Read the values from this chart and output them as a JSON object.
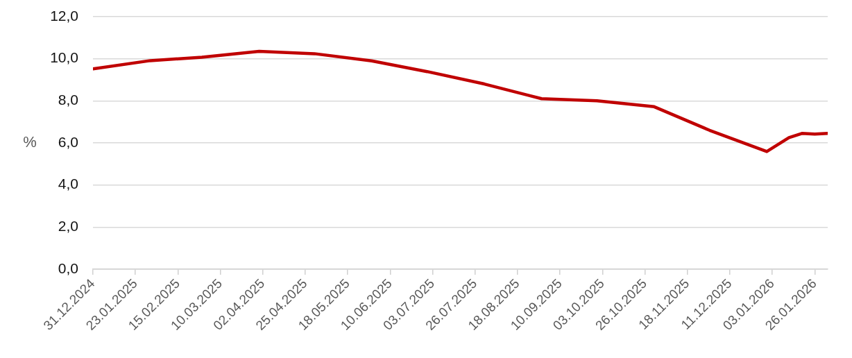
{
  "chart_data": {
    "type": "line",
    "ylabel": "%",
    "x": [
      "2024-12-31",
      "2025-01-31",
      "2025-02-28",
      "2025-03-31",
      "2025-04-30",
      "2025-05-31",
      "2025-06-30",
      "2025-07-31",
      "2025-08-31",
      "2025-09-30",
      "2025-10-31",
      "2025-11-30",
      "2025-12-31",
      "2026-01-12",
      "2026-01-19",
      "2026-01-26",
      "2026-02-02"
    ],
    "values": [
      9.52,
      9.91,
      10.07,
      10.35,
      10.24,
      9.9,
      9.39,
      8.8,
      8.1,
      8.0,
      7.72,
      6.6,
      5.59,
      6.25,
      6.45,
      6.42,
      6.45
    ],
    "color": "#c00000",
    "xlim": [
      "2024-12-31",
      "2026-02-02"
    ],
    "xticks": [
      {
        "value": "2024-12-31",
        "label": "31.12.2024"
      },
      {
        "value": "2025-01-23",
        "label": "23.01.2025"
      },
      {
        "value": "2025-02-15",
        "label": "15.02.2025"
      },
      {
        "value": "2025-03-10",
        "label": "10.03.2025"
      },
      {
        "value": "2025-04-02",
        "label": "02.04.2025"
      },
      {
        "value": "2025-04-25",
        "label": "25.04.2025"
      },
      {
        "value": "2025-05-18",
        "label": "18.05.2025"
      },
      {
        "value": "2025-06-10",
        "label": "10.06.2025"
      },
      {
        "value": "2025-07-03",
        "label": "03.07.2025"
      },
      {
        "value": "2025-07-26",
        "label": "26.07.2025"
      },
      {
        "value": "2025-08-18",
        "label": "18.08.2025"
      },
      {
        "value": "2025-09-10",
        "label": "10.09.2025"
      },
      {
        "value": "2025-10-03",
        "label": "03.10.2025"
      },
      {
        "value": "2025-10-26",
        "label": "26.10.2025"
      },
      {
        "value": "2025-11-18",
        "label": "18.11.2025"
      },
      {
        "value": "2025-12-11",
        "label": "11.12.2025"
      },
      {
        "value": "2026-01-03",
        "label": "03.01.2026"
      },
      {
        "value": "2026-01-26",
        "label": "26.01.2026"
      }
    ],
    "ylim": [
      0,
      12
    ],
    "yticks": [
      {
        "value": 0,
        "label": "0,0"
      },
      {
        "value": 2,
        "label": "2,0"
      },
      {
        "value": 4,
        "label": "4,0"
      },
      {
        "value": 6,
        "label": "6,0"
      },
      {
        "value": 8,
        "label": "8,0"
      },
      {
        "value": 10,
        "label": "10,0"
      },
      {
        "value": 12,
        "label": "12,0"
      }
    ],
    "grid": "y"
  }
}
